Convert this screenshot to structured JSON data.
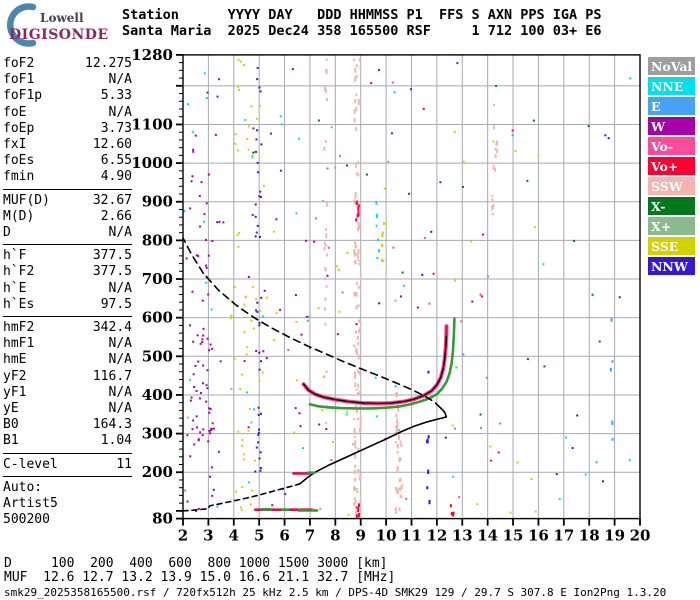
{
  "logo": {
    "line1": "Lowell",
    "line2": "DIGISONDE"
  },
  "header": {
    "line1": "Station      YYYY DAY   DDD HHMMSS P1  FFS S AXN PPS IGA PS",
    "line2": "Santa Maria  2025 Dec24 358 165500 RSF     1 712 100 03+ E6"
  },
  "params": {
    "groups": [
      {
        "rows": [
          [
            "foF2",
            "12.275"
          ],
          [
            "foF1",
            "N/A"
          ],
          [
            "foF1p",
            "5.33"
          ],
          [
            "foE",
            "N/A"
          ],
          [
            "foEp",
            "3.73"
          ],
          [
            "fxI",
            "12.60"
          ],
          [
            "foEs",
            "6.55"
          ],
          [
            "fmin",
            "4.90"
          ]
        ],
        "divider_after": true
      },
      {
        "rows": [
          [
            "MUF(D)",
            "32.67"
          ],
          [
            "M(D)",
            "2.66"
          ],
          [
            "D",
            "N/A"
          ]
        ],
        "divider_after": true
      },
      {
        "rows": [
          [
            "h`F",
            "377.5"
          ],
          [
            "h`F2",
            "377.5"
          ],
          [
            "h`E",
            "N/A"
          ],
          [
            "h`Es",
            "97.5"
          ]
        ],
        "divider_after": true
      },
      {
        "rows": [
          [
            "hmF2",
            "342.4"
          ],
          [
            "hmF1",
            "N/A"
          ],
          [
            "hmE",
            "N/A"
          ],
          [
            "yF2",
            "116.7"
          ],
          [
            "yF1",
            "N/A"
          ],
          [
            "yE",
            "N/A"
          ],
          [
            "B0",
            "164.3"
          ],
          [
            "B1",
            "1.04"
          ]
        ],
        "divider_after": true
      },
      {
        "rows": [
          [
            "C-level",
            "11"
          ]
        ],
        "divider_after": true
      },
      {
        "rows": [
          [
            "Auto:",
            ""
          ],
          [
            "Artist5",
            ""
          ],
          [
            "500200",
            ""
          ]
        ],
        "divider_after": false
      }
    ]
  },
  "legend": {
    "items": [
      {
        "label": "NoVal",
        "color": "#9e9ea0"
      },
      {
        "label": "NNE",
        "color": "#00dfef"
      },
      {
        "label": "E",
        "color": "#46a2f5"
      },
      {
        "label": "W",
        "color": "#a800a8"
      },
      {
        "label": "Vo-",
        "color": "#fa4c9b"
      },
      {
        "label": "Vo+",
        "color": "#fa0032"
      },
      {
        "label": "SSW",
        "color": "#f5b5ae"
      },
      {
        "label": "X-",
        "color": "#00781c"
      },
      {
        "label": "X+",
        "color": "#8cba8c"
      },
      {
        "label": "SSE",
        "color": "#d2d200"
      },
      {
        "label": "NNW",
        "color": "#3318d8"
      }
    ]
  },
  "footer": {
    "d_row": "D     100  200  400  600  800 1000 1500 3000 [km]",
    "muf_row": "MUF  12.6 12.7 13.2 13.9 15.0 16.6 21.1 32.7 [MHz]",
    "file_row": "smk29_2025358165500.rsf / 720fx512h 25 kHz 2.5 km / DPS-4D SMK29 129 / 29.7 S 307.8 E Ion2Png 1.3.20"
  },
  "chart_data": {
    "type": "scatter",
    "title": "",
    "xlabel": "[MHz]",
    "ylabel": "[km]",
    "x_range": [
      2,
      20
    ],
    "y_range": [
      80,
      1280
    ],
    "x_ticks": [
      2,
      3,
      4,
      5,
      6,
      7,
      8,
      9,
      10,
      11,
      12,
      13,
      14,
      15,
      16,
      17,
      18,
      19,
      20
    ],
    "y_tick_labels": [
      1280,
      1100,
      1000,
      900,
      800,
      700,
      600,
      500,
      400,
      300,
      200,
      80
    ],
    "grid": {
      "x_step_mhz": 1,
      "y_step_km": 100,
      "color": "#a8a9b4"
    },
    "series": [
      {
        "name": "O-mode F trace",
        "type": "line",
        "color": "#dc1048",
        "outer_color": "#f6559e",
        "width": 2.2,
        "points": [
          [
            6.75,
            428
          ],
          [
            6.95,
            412
          ],
          [
            7.2,
            402
          ],
          [
            7.55,
            394
          ],
          [
            8.0,
            388
          ],
          [
            8.5,
            383
          ],
          [
            9.1,
            379
          ],
          [
            9.7,
            378
          ],
          [
            10.2,
            379
          ],
          [
            10.7,
            383
          ],
          [
            11.1,
            389
          ],
          [
            11.5,
            399
          ],
          [
            11.8,
            411
          ],
          [
            12.0,
            426
          ],
          [
            12.15,
            445
          ],
          [
            12.25,
            468
          ],
          [
            12.31,
            495
          ],
          [
            12.35,
            525
          ],
          [
            12.37,
            552
          ],
          [
            12.38,
            578
          ]
        ]
      },
      {
        "name": "X-mode F trace",
        "type": "line",
        "color": "#2f9e30",
        "width": 2.6,
        "points": [
          [
            7.0,
            376
          ],
          [
            7.3,
            371
          ],
          [
            7.7,
            368
          ],
          [
            8.2,
            366
          ],
          [
            8.8,
            365
          ],
          [
            9.4,
            365
          ],
          [
            10.0,
            367
          ],
          [
            10.5,
            370
          ],
          [
            10.9,
            375
          ],
          [
            11.3,
            382
          ],
          [
            11.7,
            391
          ],
          [
            12.0,
            402
          ],
          [
            12.2,
            416
          ],
          [
            12.38,
            434
          ],
          [
            12.5,
            456
          ],
          [
            12.58,
            482
          ],
          [
            12.63,
            512
          ],
          [
            12.66,
            545
          ],
          [
            12.68,
            575
          ],
          [
            12.69,
            598
          ]
        ]
      },
      {
        "name": "ARTIST fitted trace",
        "type": "line",
        "color": "#000000",
        "width": 1.1,
        "points": [
          [
            6.75,
            428
          ],
          [
            6.95,
            412
          ],
          [
            7.2,
            402
          ],
          [
            7.55,
            394
          ],
          [
            8.0,
            388
          ],
          [
            8.5,
            383
          ],
          [
            9.1,
            379
          ],
          [
            9.7,
            378
          ],
          [
            10.2,
            379
          ],
          [
            10.7,
            383
          ],
          [
            11.1,
            389
          ],
          [
            11.5,
            399
          ],
          [
            11.8,
            411
          ],
          [
            12.0,
            426
          ],
          [
            12.15,
            445
          ],
          [
            12.25,
            468
          ],
          [
            12.31,
            495
          ],
          [
            12.35,
            525
          ],
          [
            12.37,
            552
          ]
        ]
      },
      {
        "name": "true-height profile bottomside extrapolated",
        "type": "line",
        "color": "#000000",
        "width": 1.6,
        "dash": "5 4",
        "points": [
          [
            2.0,
            100
          ],
          [
            2.45,
            102
          ],
          [
            2.9,
            105
          ],
          [
            3.0,
            106
          ],
          [
            3.05,
            113
          ],
          [
            3.5,
            119
          ],
          [
            4.0,
            126
          ],
          [
            4.5,
            133
          ],
          [
            5.0,
            141
          ],
          [
            5.5,
            150
          ],
          [
            6.0,
            159
          ],
          [
            6.35,
            165
          ],
          [
            6.6,
            170
          ]
        ]
      },
      {
        "name": "true-height profile bottomside",
        "type": "line",
        "color": "#000000",
        "width": 1.6,
        "points": [
          [
            6.6,
            170
          ],
          [
            6.9,
            186
          ],
          [
            7.2,
            200
          ],
          [
            7.7,
            217
          ],
          [
            8.2,
            232
          ],
          [
            8.8,
            250
          ],
          [
            9.4,
            268
          ],
          [
            10.0,
            286
          ],
          [
            10.6,
            305
          ],
          [
            11.1,
            319
          ],
          [
            11.6,
            330
          ],
          [
            12.0,
            337
          ],
          [
            12.2,
            340
          ],
          [
            12.3,
            342
          ],
          [
            12.37,
            343
          ]
        ]
      },
      {
        "name": "true-height profile peak",
        "type": "line",
        "color": "#000000",
        "width": 1.6,
        "points": [
          [
            12.37,
            343
          ],
          [
            12.33,
            352
          ],
          [
            12.25,
            360
          ],
          [
            12.15,
            366
          ]
        ]
      },
      {
        "name": "true-height profile topside modeled",
        "type": "line",
        "color": "#000000",
        "width": 1.6,
        "dash": "7 5",
        "points": [
          [
            12.15,
            366
          ],
          [
            11.9,
            382
          ],
          [
            11.5,
            398
          ],
          [
            11.0,
            414
          ],
          [
            10.4,
            431
          ],
          [
            9.7,
            450
          ],
          [
            9.0,
            468
          ],
          [
            8.3,
            487
          ],
          [
            7.6,
            507
          ],
          [
            6.9,
            527
          ],
          [
            6.2,
            549
          ],
          [
            5.5,
            573
          ],
          [
            4.8,
            600
          ],
          [
            4.1,
            632
          ],
          [
            3.4,
            671
          ],
          [
            2.8,
            715
          ],
          [
            2.35,
            762
          ],
          [
            2.05,
            800
          ],
          [
            2.0,
            806
          ]
        ]
      },
      {
        "name": "Es trace O-mode",
        "type": "segments",
        "color": "#dc1048",
        "width": 2.6,
        "segments": [
          [
            [
              4.85,
              103
            ],
            [
              7.08,
              103
            ]
          ],
          [
            [
              6.35,
              197
            ],
            [
              6.98,
              197
            ]
          ]
        ]
      },
      {
        "name": "Es trace X-mode",
        "type": "segments",
        "color": "#2f9e30",
        "width": 2.6,
        "segments": [
          [
            [
              5.1,
              104
            ],
            [
              5.45,
              104
            ]
          ],
          [
            [
              5.9,
              103
            ],
            [
              6.15,
              103
            ]
          ],
          [
            [
              6.55,
              101
            ],
            [
              7.28,
              101
            ]
          ],
          [
            [
              6.93,
              199
            ],
            [
              7.18,
              199
            ]
          ]
        ]
      }
    ],
    "noise": {
      "seed": 1337,
      "dot_size": 2,
      "regions": [
        {
          "color": "W",
          "f": [
            2.05,
            3.6
          ],
          "km": [
            90,
            1270
          ],
          "n": 60
        },
        {
          "color": "W",
          "f": [
            2.3,
            3.2
          ],
          "km": [
            280,
            580
          ],
          "n": 30
        },
        {
          "color": "W",
          "f": [
            3.6,
            7.0
          ],
          "km": [
            90,
            1270
          ],
          "n": 25
        },
        {
          "color": "W",
          "f": [
            7.0,
            13.5
          ],
          "km": [
            200,
            1270
          ],
          "n": 16
        },
        {
          "color": "SSE",
          "f": [
            3.8,
            5.2
          ],
          "km": [
            85,
            1270
          ],
          "n": 55
        },
        {
          "color": "SSE",
          "f": [
            5.2,
            9.0
          ],
          "km": [
            85,
            900
          ],
          "n": 20
        },
        {
          "color": "SSE",
          "f": [
            12.5,
            16.5
          ],
          "km": [
            85,
            1100
          ],
          "n": 16
        },
        {
          "color": "NNW",
          "f": [
            4.8,
            5.05
          ],
          "km": [
            150,
            1278
          ],
          "n": 40
        },
        {
          "color": "NNW",
          "f": [
            2.0,
            19.8
          ],
          "km": [
            85,
            1270
          ],
          "n": 12
        },
        {
          "color": "NNE",
          "f": [
            2.0,
            11.0
          ],
          "km": [
            100,
            1270
          ],
          "n": 28
        },
        {
          "color": "NNE",
          "f": [
            11.0,
            19.8
          ],
          "km": [
            100,
            1270
          ],
          "n": 8
        },
        {
          "color": "E",
          "f": [
            2.0,
            19.5
          ],
          "km": [
            85,
            1270
          ],
          "n": 14
        },
        {
          "color": "X-",
          "f": [
            2.0,
            19.5
          ],
          "km": [
            85,
            1270
          ],
          "n": 16
        },
        {
          "color": "X+",
          "f": [
            2.0,
            13.0
          ],
          "km": [
            85,
            1270
          ],
          "n": 10
        },
        {
          "color": "Vo-",
          "f": [
            6.0,
            14.0
          ],
          "km": [
            85,
            1270
          ],
          "n": 14
        },
        {
          "color": "Vo+",
          "f": [
            8.0,
            15.0
          ],
          "km": [
            85,
            1270
          ],
          "n": 8
        }
      ],
      "columns": [
        {
          "color": "SSW",
          "f": 7.58,
          "km": [
            290,
            1275
          ],
          "n": 26
        },
        {
          "color": "SSW",
          "f": 8.76,
          "km": [
            85,
            1278
          ],
          "n": 60
        },
        {
          "color": "SSW",
          "f": 8.9,
          "km": [
            85,
            1278
          ],
          "n": 45
        },
        {
          "color": "SSW",
          "f": 10.38,
          "km": [
            85,
            430
          ],
          "n": 26
        },
        {
          "color": "SSW",
          "f": 10.52,
          "km": [
            85,
            300
          ],
          "n": 14
        },
        {
          "color": "SSW",
          "f": 14.18,
          "km": [
            870,
            1160
          ],
          "n": 10
        },
        {
          "color": "SSW",
          "f": 14.3,
          "km": [
            980,
            1130
          ],
          "n": 6
        },
        {
          "color": "Vo+",
          "f": 8.83,
          "km": [
            850,
            905
          ],
          "n": 7
        },
        {
          "color": "Vo+",
          "f": 8.86,
          "km": [
            88,
            135
          ],
          "n": 5
        },
        {
          "color": "Vo+",
          "f": 12.56,
          "km": [
            86,
            118
          ],
          "n": 5
        },
        {
          "color": "NNE",
          "f": 9.63,
          "km": [
            730,
            1010
          ],
          "n": 6
        },
        {
          "color": "SSE",
          "f": 9.86,
          "km": [
            730,
            960
          ],
          "n": 7
        },
        {
          "color": "NNW",
          "f": 11.62,
          "km": [
            100,
            520
          ],
          "n": 7
        },
        {
          "color": "E",
          "f": 18.85,
          "km": [
            85,
            1270
          ],
          "n": 5
        }
      ]
    },
    "status_colors": {
      "NoVal": "#9e9ea0",
      "NNE": "#00dfef",
      "E": "#46a2f5",
      "W": "#a800a8",
      "Vo-": "#fa4c9b",
      "Vo+": "#fa0032",
      "SSW": "#f5b5ae",
      "X-": "#00781c",
      "X+": "#8cba8c",
      "SSE": "#d2d200",
      "NNW": "#3318d8"
    }
  }
}
